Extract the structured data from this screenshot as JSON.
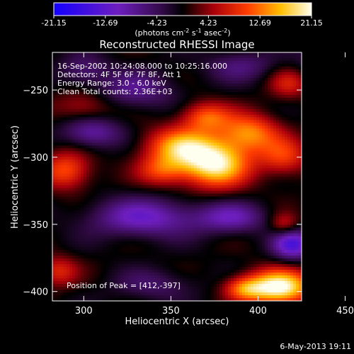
{
  "chart_data": {
    "type": "heatmap",
    "title": "Reconstructed RHESSI Image",
    "xlabel": "Heliocentric X (arcsec)",
    "ylabel": "Heliocentric Y (arcsec)",
    "xlim": [
      282,
      425
    ],
    "ylim": [
      -407,
      -222
    ],
    "x_ticks": [
      300,
      350,
      400,
      450
    ],
    "y_ticks": [
      -250,
      -300,
      -350,
      -400
    ],
    "colorbar": {
      "min": -21.15,
      "max": 21.15,
      "ticks": [
        "-21.15",
        "-12.69",
        "-4.23",
        "4.23",
        "12.69",
        "21.15"
      ],
      "units_text": "(photons cm",
      "units_sup1": "-2",
      "units_mid": " s",
      "units_sup2": "-1",
      "units_mid2": " asec",
      "units_sup3": "-2",
      "units_end": ")"
    },
    "info_lines": [
      "16-Sep-2002 10:24:08.000 to 10:25:16.000",
      "Detectors: 4F 5F 6F 7F 8F, Att 1",
      "Energy Range: 3.0 - 6.0 keV",
      "Clean     Total counts: 2.36E+03"
    ],
    "peak_text": "Position of Peak = [412,-397]",
    "blobs": [
      {
        "x": 375,
        "y": -305,
        "sx": 14,
        "sy": 12,
        "a": 20
      },
      {
        "x": 355,
        "y": -292,
        "sx": 14,
        "sy": 10,
        "a": 14
      },
      {
        "x": 395,
        "y": -282,
        "sx": 12,
        "sy": 10,
        "a": 13
      },
      {
        "x": 370,
        "y": -270,
        "sx": 10,
        "sy": 8,
        "a": 11
      },
      {
        "x": 345,
        "y": -310,
        "sx": 10,
        "sy": 8,
        "a": 9
      },
      {
        "x": 415,
        "y": -300,
        "sx": 10,
        "sy": 10,
        "a": 9
      },
      {
        "x": 412,
        "y": -397,
        "sx": 13,
        "sy": 9,
        "a": 22
      },
      {
        "x": 392,
        "y": -398,
        "sx": 8,
        "sy": 6,
        "a": 10
      },
      {
        "x": 290,
        "y": -310,
        "sx": 10,
        "sy": 10,
        "a": 11
      },
      {
        "x": 285,
        "y": -385,
        "sx": 8,
        "sy": 8,
        "a": 8
      },
      {
        "x": 300,
        "y": -262,
        "sx": 12,
        "sy": 8,
        "a": 6
      },
      {
        "x": 415,
        "y": -350,
        "sx": 6,
        "sy": 6,
        "a": 7
      },
      {
        "x": 418,
        "y": -245,
        "sx": 8,
        "sy": 8,
        "a": 7
      },
      {
        "x": 335,
        "y": -345,
        "sx": 22,
        "sy": 10,
        "a": -11
      },
      {
        "x": 385,
        "y": -345,
        "sx": 14,
        "sy": 8,
        "a": -9
      },
      {
        "x": 305,
        "y": -282,
        "sx": 12,
        "sy": 8,
        "a": -9
      },
      {
        "x": 330,
        "y": -250,
        "sx": 16,
        "sy": 10,
        "a": -7
      },
      {
        "x": 420,
        "y": -365,
        "sx": 8,
        "sy": 8,
        "a": -14
      },
      {
        "x": 300,
        "y": -235,
        "sx": 10,
        "sy": 8,
        "a": -6
      },
      {
        "x": 390,
        "y": -232,
        "sx": 14,
        "sy": 8,
        "a": -6
      },
      {
        "x": 340,
        "y": -395,
        "sx": 16,
        "sy": 8,
        "a": -5
      },
      {
        "x": 435,
        "y": -230,
        "sx": 10,
        "sy": 10,
        "a": -4
      }
    ]
  },
  "footer_timestamp": "6-May-2013 19:11"
}
